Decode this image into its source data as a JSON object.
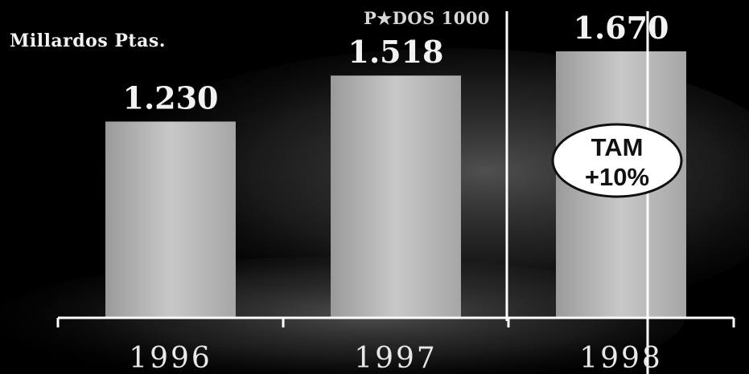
{
  "chart_data": {
    "type": "bar",
    "unit_label": "Millardos Ptas.",
    "categories": [
      "1996",
      "1997",
      "1998"
    ],
    "values": [
      1230,
      1518,
      1670
    ],
    "value_labels": [
      "1.230",
      "1.518",
      "1.670"
    ],
    "ylim": [
      0,
      1700
    ],
    "grid": false,
    "annotations": {
      "marker_line_label": "P★DOS 1000",
      "tam_badge_line1": "TAM",
      "tam_badge_line2": "+10%"
    },
    "colors": {
      "background": "#000000",
      "bar": "#bdbdbd",
      "text": "#f2f2f2"
    }
  }
}
